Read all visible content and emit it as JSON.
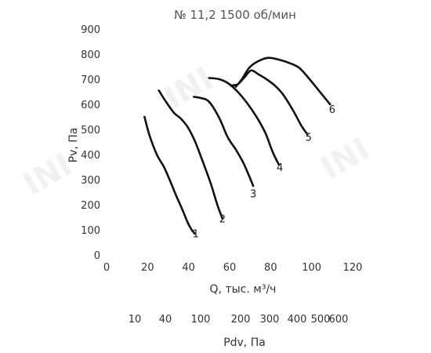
{
  "chart_data": {
    "type": "line",
    "title": "№ 11,2 1500 об/мин",
    "xlabel": "Q, тыс. м³/ч",
    "ylabel": "Pv, Па",
    "xlim": [
      0,
      120
    ],
    "ylim": [
      0,
      900
    ],
    "xticks": [
      0,
      20,
      40,
      60,
      80,
      100,
      120
    ],
    "yticks": [
      0,
      100,
      200,
      300,
      400,
      500,
      600,
      700,
      800,
      900
    ],
    "grid": false,
    "legend": "none",
    "secondary_axis": {
      "label": "Pdv, Па",
      "ticks": [
        "10",
        "40",
        "100",
        "200",
        "300",
        "400",
        "500",
        "600"
      ]
    },
    "series": [
      {
        "name": "1",
        "color": "#111111",
        "x": [
          18.5,
          21,
          24.5,
          28,
          31,
          34,
          37,
          39.5,
          41.5,
          43
        ],
        "y": [
          550,
          475,
          400,
          350,
          295,
          235,
          180,
          130,
          100,
          85
        ]
      },
      {
        "name": "2",
        "color": "#111111",
        "x": [
          25.5,
          29,
          33,
          36,
          39.5,
          43,
          47,
          51,
          54,
          56.5
        ],
        "y": [
          655,
          610,
          565,
          545,
          510,
          455,
          370,
          280,
          200,
          145
        ]
      },
      {
        "name": "3",
        "color": "#111111",
        "x": [
          42.5,
          46,
          50,
          55,
          59,
          63,
          66.5,
          69.5,
          71.5
        ],
        "y": [
          630,
          625,
          610,
          545,
          470,
          420,
          370,
          315,
          275
        ]
      },
      {
        "name": "4",
        "color": "#111111",
        "x": [
          50,
          55,
          60,
          64.5,
          69,
          73.5,
          77.5,
          81,
          84
        ],
        "y": [
          705,
          700,
          680,
          645,
          600,
          545,
          485,
          410,
          360
        ]
      },
      {
        "name": "5",
        "color": "#111111",
        "x": [
          60.5,
          64,
          67.5,
          70.5,
          74,
          78,
          82,
          86,
          91,
          95,
          98
        ],
        "y": [
          675,
          680,
          710,
          735,
          720,
          700,
          675,
          640,
          575,
          515,
          480
        ]
      },
      {
        "name": "6",
        "color": "#111111",
        "x": [
          63,
          66,
          69.5,
          73.5,
          78.5,
          83,
          89,
          94,
          99,
          104,
          109
        ],
        "y": [
          670,
          700,
          745,
          770,
          785,
          780,
          765,
          745,
          700,
          650,
          600
        ]
      }
    ],
    "label_points": [
      {
        "name": "1",
        "x": 43.5,
        "y": 70
      },
      {
        "name": "2",
        "x": 56.5,
        "y": 130
      },
      {
        "name": "3",
        "x": 71.5,
        "y": 230
      },
      {
        "name": "4",
        "x": 84.5,
        "y": 335
      },
      {
        "name": "5",
        "x": 98.5,
        "y": 455
      },
      {
        "name": "6",
        "x": 110,
        "y": 565
      }
    ]
  }
}
